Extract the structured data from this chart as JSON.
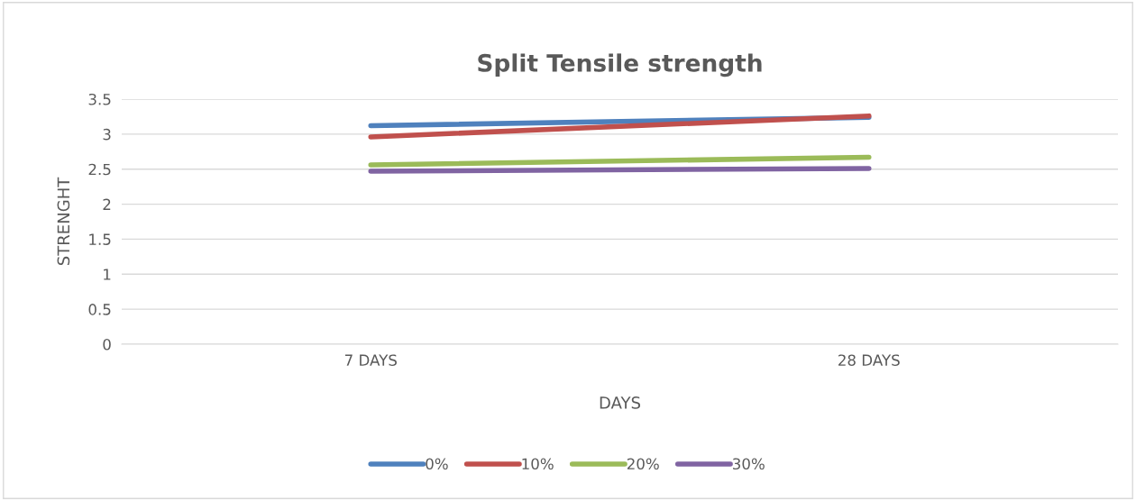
{
  "chart_data": {
    "type": "line",
    "title": "Split Tensile strength",
    "xlabel": "DAYS",
    "ylabel": "STRENGHT",
    "categories": [
      "7 DAYS",
      "28 DAYS"
    ],
    "series": [
      {
        "name": "0%",
        "color": "#4f81bd",
        "values": [
          3.12,
          3.24
        ]
      },
      {
        "name": "10%",
        "color": "#c0504d",
        "values": [
          2.96,
          3.26
        ]
      },
      {
        "name": "20%",
        "color": "#9bbb59",
        "values": [
          2.56,
          2.67
        ]
      },
      {
        "name": "30%",
        "color": "#8064a2",
        "values": [
          2.47,
          2.51
        ]
      }
    ],
    "ylim": [
      0,
      3.5
    ],
    "yticks": [
      0,
      0.5,
      1,
      1.5,
      2,
      2.5,
      3,
      3.5
    ],
    "grid": "y",
    "legend": "bottom",
    "marker": "none",
    "line_style": "solid"
  }
}
